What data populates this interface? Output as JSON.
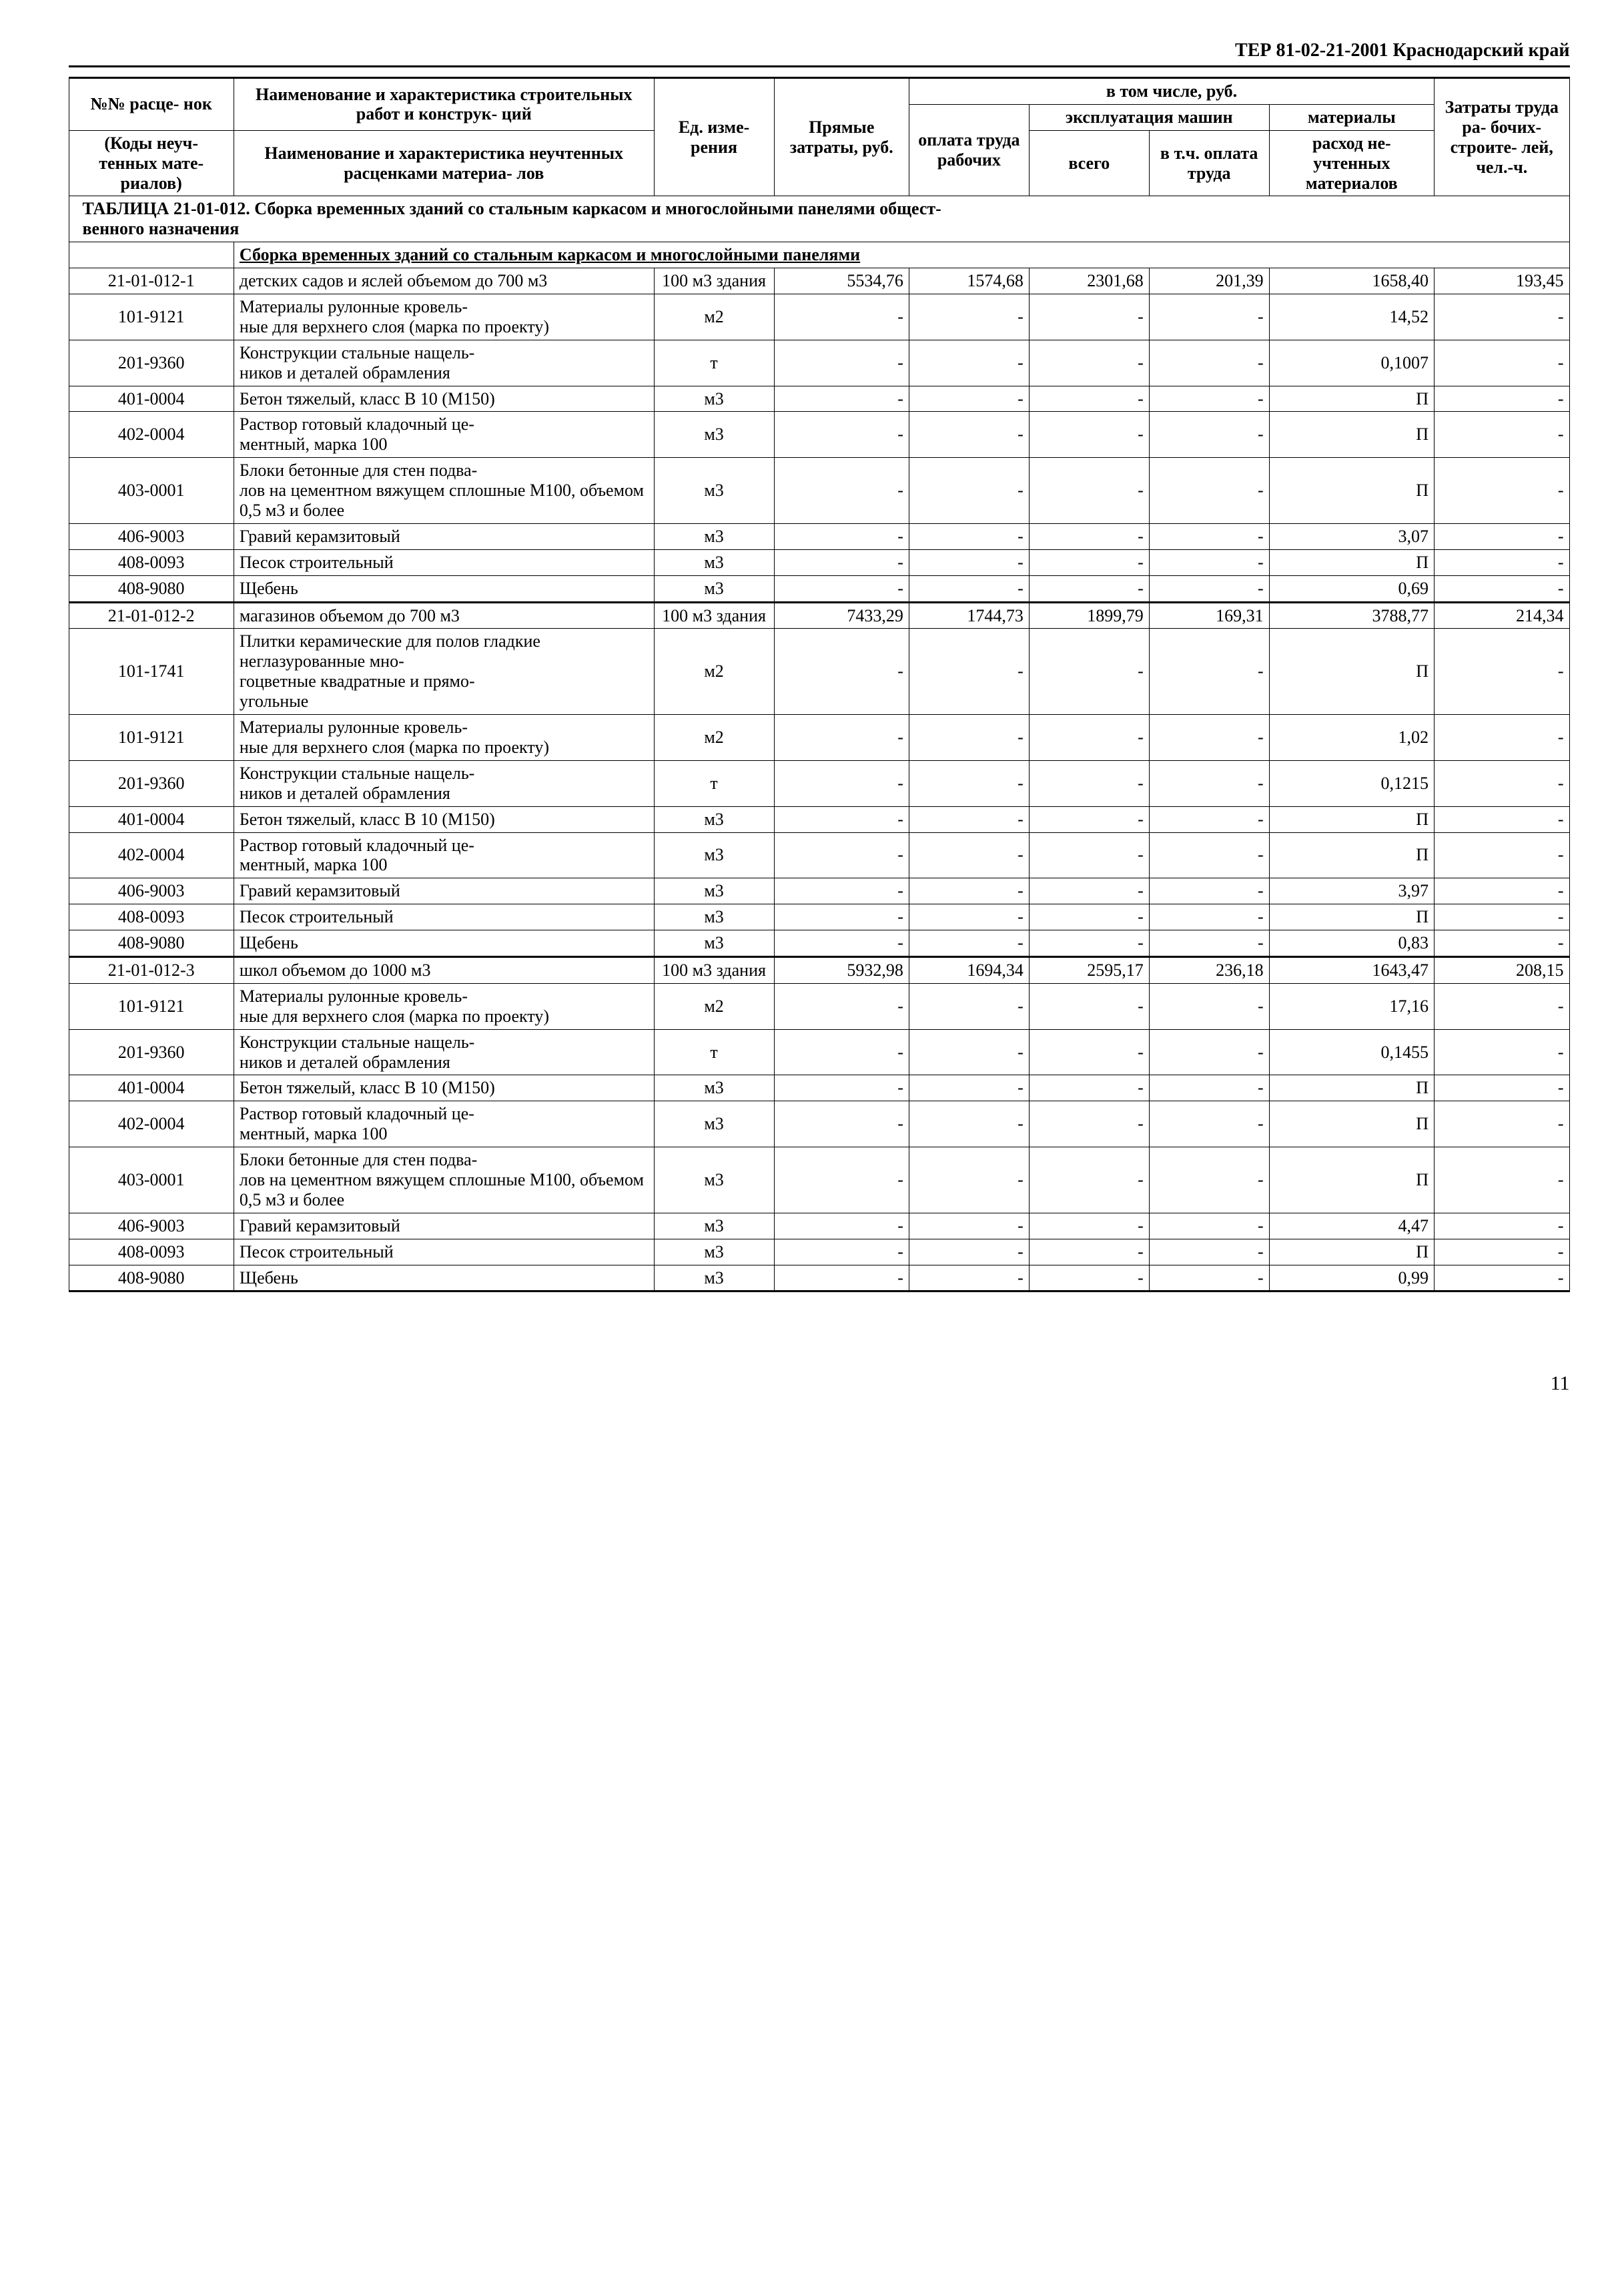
{
  "doc_header": "ТЕР 81-02-21-2001  Краснодарский край",
  "page_number": "11",
  "columns": {
    "col1_top": "№№ расце-\nнок",
    "col1_bot": "(Коды неуч-\nтенных мате-\nриалов)",
    "col2_top": "Наименование и характеристика строительных работ и конструк-\nций",
    "col2_bot": "Наименование и характеристика неучтенных расценками материа-\nлов",
    "col3": "Ед. изме-\nрения",
    "col4": "Прямые затраты, руб.",
    "group5_top": "в том числе, руб.",
    "col5a": "оплата труда рабочих",
    "col5b_top": "эксплуатация машин",
    "col5b1": "всего",
    "col5b2": "в т.ч. оплата труда",
    "col5c_top": "материалы",
    "col5c_bot": "расход не-\nучтенных материалов",
    "col6": "Затраты труда ра-\nбочих-\nстроите-\nлей,\nчел.-ч."
  },
  "table_title": "ТАБЛИЦА  21-01-012.  Сборка временных зданий со стальным каркасом и многослойными панелями общест-\nвенного назначения",
  "section_subtitle": "Сборка временных зданий со стальным каркасом и многослойными панелями",
  "rows": [
    {
      "code": "21-01-012-1",
      "desc": "детских садов и яслей объемом до 700 м3",
      "unit": "100 м3 здания",
      "c4": "5534,76",
      "c5": "1574,68",
      "c6": "2301,68",
      "c7": "201,39",
      "c8": "1658,40",
      "c9": "193,45"
    },
    {
      "code": "101-9121",
      "desc": "Материалы рулонные кровель-\nные для верхнего слоя (марка по проекту)",
      "unit": "м2",
      "c4": "-",
      "c5": "-",
      "c6": "-",
      "c7": "-",
      "c8": "14,52",
      "c9": "-"
    },
    {
      "code": "201-9360",
      "desc": "Конструкции стальные нащель-\nников и деталей обрамления",
      "unit": "т",
      "c4": "-",
      "c5": "-",
      "c6": "-",
      "c7": "-",
      "c8": "0,1007",
      "c9": "-"
    },
    {
      "code": "401-0004",
      "desc": "Бетон тяжелый, класс В 10 (М150)",
      "unit": "м3",
      "c4": "-",
      "c5": "-",
      "c6": "-",
      "c7": "-",
      "c8": "П",
      "c9": "-"
    },
    {
      "code": "402-0004",
      "desc": "Раствор готовый кладочный це-\nментный, марка 100",
      "unit": "м3",
      "c4": "-",
      "c5": "-",
      "c6": "-",
      "c7": "-",
      "c8": "П",
      "c9": "-"
    },
    {
      "code": "403-0001",
      "desc": "Блоки бетонные для стен подва-\nлов на цементном вяжущем сплошные М100, объемом 0,5 м3 и более",
      "unit": "м3",
      "c4": "-",
      "c5": "-",
      "c6": "-",
      "c7": "-",
      "c8": "П",
      "c9": "-"
    },
    {
      "code": "406-9003",
      "desc": "Гравий керамзитовый",
      "unit": "м3",
      "c4": "-",
      "c5": "-",
      "c6": "-",
      "c7": "-",
      "c8": "3,07",
      "c9": "-"
    },
    {
      "code": "408-0093",
      "desc": "Песок строительный",
      "unit": "м3",
      "c4": "-",
      "c5": "-",
      "c6": "-",
      "c7": "-",
      "c8": "П",
      "c9": "-"
    },
    {
      "code": "408-9080",
      "desc": "Щебень",
      "unit": "м3",
      "c4": "-",
      "c5": "-",
      "c6": "-",
      "c7": "-",
      "c8": "0,69",
      "c9": "-",
      "divider": true
    },
    {
      "code": "21-01-012-2",
      "desc": "магазинов объемом до 700 м3",
      "unit": "100 м3 здания",
      "c4": "7433,29",
      "c5": "1744,73",
      "c6": "1899,79",
      "c7": "169,31",
      "c8": "3788,77",
      "c9": "214,34"
    },
    {
      "code": "101-1741",
      "desc": "Плитки керамические для полов гладкие неглазурованные мно-\nгоцветные квадратные и прямо-\nугольные",
      "unit": "м2",
      "c4": "-",
      "c5": "-",
      "c6": "-",
      "c7": "-",
      "c8": "П",
      "c9": "-"
    },
    {
      "code": "101-9121",
      "desc": "Материалы рулонные кровель-\nные для верхнего слоя (марка по проекту)",
      "unit": "м2",
      "c4": "-",
      "c5": "-",
      "c6": "-",
      "c7": "-",
      "c8": "1,02",
      "c9": "-"
    },
    {
      "code": "201-9360",
      "desc": "Конструкции стальные нащель-\nников и деталей обрамления",
      "unit": "т",
      "c4": "-",
      "c5": "-",
      "c6": "-",
      "c7": "-",
      "c8": "0,1215",
      "c9": "-"
    },
    {
      "code": "401-0004",
      "desc": "Бетон тяжелый, класс В 10 (М150)",
      "unit": "м3",
      "c4": "-",
      "c5": "-",
      "c6": "-",
      "c7": "-",
      "c8": "П",
      "c9": "-"
    },
    {
      "code": "402-0004",
      "desc": "Раствор готовый кладочный це-\nментный, марка 100",
      "unit": "м3",
      "c4": "-",
      "c5": "-",
      "c6": "-",
      "c7": "-",
      "c8": "П",
      "c9": "-"
    },
    {
      "code": "406-9003",
      "desc": "Гравий керамзитовый",
      "unit": "м3",
      "c4": "-",
      "c5": "-",
      "c6": "-",
      "c7": "-",
      "c8": "3,97",
      "c9": "-"
    },
    {
      "code": "408-0093",
      "desc": "Песок строительный",
      "unit": "м3",
      "c4": "-",
      "c5": "-",
      "c6": "-",
      "c7": "-",
      "c8": "П",
      "c9": "-"
    },
    {
      "code": "408-9080",
      "desc": "Щебень",
      "unit": "м3",
      "c4": "-",
      "c5": "-",
      "c6": "-",
      "c7": "-",
      "c8": "0,83",
      "c9": "-",
      "divider": true
    },
    {
      "code": "21-01-012-3",
      "desc": "школ объемом до 1000 м3",
      "unit": "100 м3 здания",
      "c4": "5932,98",
      "c5": "1694,34",
      "c6": "2595,17",
      "c7": "236,18",
      "c8": "1643,47",
      "c9": "208,15"
    },
    {
      "code": "101-9121",
      "desc": "Материалы рулонные кровель-\nные для верхнего слоя (марка по проекту)",
      "unit": "м2",
      "c4": "-",
      "c5": "-",
      "c6": "-",
      "c7": "-",
      "c8": "17,16",
      "c9": "-"
    },
    {
      "code": "201-9360",
      "desc": "Конструкции стальные нащель-\nников и деталей обрамления",
      "unit": "т",
      "c4": "-",
      "c5": "-",
      "c6": "-",
      "c7": "-",
      "c8": "0,1455",
      "c9": "-"
    },
    {
      "code": "401-0004",
      "desc": "Бетон тяжелый, класс В 10 (М150)",
      "unit": "м3",
      "c4": "-",
      "c5": "-",
      "c6": "-",
      "c7": "-",
      "c8": "П",
      "c9": "-"
    },
    {
      "code": "402-0004",
      "desc": "Раствор готовый кладочный це-\nментный, марка 100",
      "unit": "м3",
      "c4": "-",
      "c5": "-",
      "c6": "-",
      "c7": "-",
      "c8": "П",
      "c9": "-"
    },
    {
      "code": "403-0001",
      "desc": "Блоки бетонные для стен подва-\nлов на цементном вяжущем сплошные М100, объемом 0,5 м3 и более",
      "unit": "м3",
      "c4": "-",
      "c5": "-",
      "c6": "-",
      "c7": "-",
      "c8": "П",
      "c9": "-"
    },
    {
      "code": "406-9003",
      "desc": "Гравий керамзитовый",
      "unit": "м3",
      "c4": "-",
      "c5": "-",
      "c6": "-",
      "c7": "-",
      "c8": "4,47",
      "c9": "-"
    },
    {
      "code": "408-0093",
      "desc": "Песок строительный",
      "unit": "м3",
      "c4": "-",
      "c5": "-",
      "c6": "-",
      "c7": "-",
      "c8": "П",
      "c9": "-"
    },
    {
      "code": "408-9080",
      "desc": "Щебень",
      "unit": "м3",
      "c4": "-",
      "c5": "-",
      "c6": "-",
      "c7": "-",
      "c8": "0,99",
      "c9": "-",
      "divider": true
    }
  ]
}
